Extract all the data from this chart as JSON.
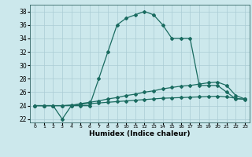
{
  "xlabel": "Humidex (Indice chaleur)",
  "ylabel": "",
  "background_color": "#cce8ec",
  "grid_color": "#aaccd4",
  "line_color": "#1a6b60",
  "x_values": [
    0,
    1,
    2,
    3,
    4,
    5,
    6,
    7,
    8,
    9,
    10,
    11,
    12,
    13,
    14,
    15,
    16,
    17,
    18,
    19,
    20,
    21,
    22,
    23
  ],
  "line1_y": [
    24,
    24,
    24,
    22,
    24,
    24,
    24,
    28,
    32,
    36,
    37,
    37.5,
    38,
    37.5,
    36,
    34,
    34,
    34,
    27,
    27,
    27,
    26,
    25,
    25
  ],
  "line2_y": [
    24,
    24,
    24,
    24,
    24,
    24.3,
    24.5,
    24.7,
    25.0,
    25.2,
    25.5,
    25.7,
    26.0,
    26.2,
    26.5,
    26.7,
    26.9,
    27.0,
    27.2,
    27.4,
    27.5,
    27.0,
    25.5,
    25.0
  ],
  "line3_y": [
    24,
    24,
    24,
    24,
    24.1,
    24.2,
    24.3,
    24.4,
    24.5,
    24.6,
    24.7,
    24.8,
    24.9,
    25.0,
    25.1,
    25.15,
    25.2,
    25.25,
    25.3,
    25.35,
    25.4,
    25.3,
    25.1,
    24.9
  ],
  "xlim": [
    -0.5,
    23.5
  ],
  "ylim": [
    21.5,
    39
  ],
  "yticks": [
    22,
    24,
    26,
    28,
    30,
    32,
    34,
    36,
    38
  ],
  "marker_size": 2.0,
  "line_width": 0.9
}
